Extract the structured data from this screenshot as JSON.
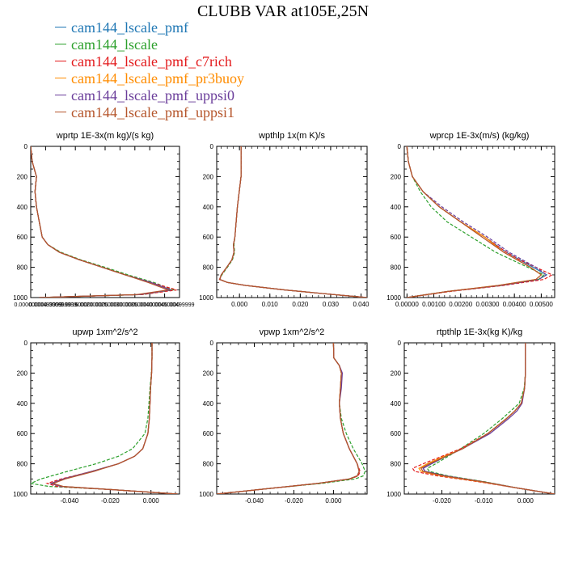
{
  "page_title": "CLUBB VAR at105E,25N",
  "legend": [
    {
      "label": "cam144_lscale_pmf",
      "color": "#1f77b4"
    },
    {
      "label": "cam144_lscale",
      "color": "#2ca02c"
    },
    {
      "label": "cam144_lscale_pmf_c7rich",
      "color": "#e31a1c"
    },
    {
      "label": "cam144_lscale_pmf_pr3buoy",
      "color": "#ff8c00"
    },
    {
      "label": "cam144_lscale_pmf_uppsi0",
      "color": "#6a3d9a"
    },
    {
      "label": "cam144_lscale_pmf_uppsi1",
      "color": "#b5552b"
    }
  ],
  "chart_data": [
    {
      "type": "line",
      "title": "wprtp  1E-3x(m kg)/(s kg)",
      "xlim": [
        0,
        0.0052
      ],
      "ylim": [
        1000,
        0
      ],
      "yticks": [
        0,
        200,
        400,
        600,
        800,
        1000
      ],
      "xtick_labels": [
        "0.000000000",
        "0.000499999",
        "0.000999999",
        "0.00150000",
        "0.00200000",
        "0.00250000",
        "0.00300000",
        "0.00350000",
        "0.00400000",
        "0.00450000",
        "0.00499999"
      ],
      "y": [
        0,
        100,
        200,
        300,
        400,
        500,
        600,
        650,
        700,
        750,
        800,
        850,
        900,
        950,
        980,
        1000
      ],
      "series": [
        {
          "color": "#1f77b4",
          "x": [
            0,
            5e-05,
            0.0002,
            0.00015,
            0.0002,
            0.0003,
            0.0004,
            0.0006,
            0.001,
            0.0017,
            0.0025,
            0.0033,
            0.0042,
            0.0049,
            0.0038,
            0.0003
          ]
        },
        {
          "color": "#2ca02c",
          "dash": true,
          "x": [
            0,
            5e-05,
            0.0002,
            0.00015,
            0.0002,
            0.0003,
            0.0004,
            0.0006,
            0.00105,
            0.00175,
            0.0026,
            0.0034,
            0.0043,
            0.005,
            0.0039,
            0.0003
          ]
        },
        {
          "color": "#e31a1c",
          "dash": true,
          "x": [
            0,
            5e-05,
            0.0002,
            0.00015,
            0.0002,
            0.0003,
            0.0004,
            0.0006,
            0.001,
            0.0017,
            0.0025,
            0.0033,
            0.0042,
            0.0051,
            0.0039,
            0.0003
          ]
        },
        {
          "color": "#ff8c00",
          "x": [
            0,
            5e-05,
            0.0002,
            0.00015,
            0.0002,
            0.0003,
            0.0004,
            0.0006,
            0.001,
            0.0017,
            0.0025,
            0.0033,
            0.0042,
            0.0049,
            0.0038,
            0.0003
          ]
        },
        {
          "color": "#6a3d9a",
          "x": [
            0,
            5e-05,
            0.0002,
            0.00015,
            0.0002,
            0.0003,
            0.0004,
            0.0006,
            0.001,
            0.0017,
            0.0025,
            0.0033,
            0.0042,
            0.0049,
            0.0038,
            0.0003
          ]
        },
        {
          "color": "#b5552b",
          "x": [
            0,
            5e-05,
            0.0002,
            0.00015,
            0.0002,
            0.0003,
            0.0004,
            0.0006,
            0.001,
            0.0017,
            0.0025,
            0.0033,
            0.0041,
            0.0048,
            0.0037,
            0.0003
          ]
        }
      ]
    },
    {
      "type": "line",
      "title": "wpthlp  1x(m K)/s",
      "xlim": [
        -0.0075,
        0.042
      ],
      "ylim": [
        1000,
        0
      ],
      "yticks": [
        0,
        200,
        400,
        600,
        800,
        1000
      ],
      "xticks": [
        0,
        0.01,
        0.02,
        0.03,
        0.04
      ],
      "xtick_labels": [
        "0.000",
        "0.010",
        "0.020",
        "0.030",
        "0.040"
      ],
      "y": [
        0,
        200,
        400,
        600,
        650,
        700,
        750,
        800,
        850,
        880,
        900,
        920,
        950,
        980,
        1000
      ],
      "series": [
        {
          "color": "#1f77b4",
          "x": [
            0.0005,
            0.0005,
            -0.0007,
            -0.0015,
            -0.002,
            -0.0018,
            -0.0025,
            -0.0042,
            -0.006,
            -0.0065,
            -0.004,
            0.002,
            0.015,
            0.031,
            0.042
          ]
        },
        {
          "color": "#2ca02c",
          "dash": true,
          "x": [
            0.0005,
            0.0005,
            -0.0007,
            -0.0015,
            -0.0018,
            -0.0016,
            -0.0023,
            -0.004,
            -0.0058,
            -0.0065,
            -0.004,
            0.002,
            0.015,
            0.031,
            0.042
          ]
        },
        {
          "color": "#e31a1c",
          "dash": true,
          "x": [
            0.0005,
            0.0005,
            -0.0007,
            -0.0015,
            -0.002,
            -0.0018,
            -0.0025,
            -0.0042,
            -0.006,
            -0.0066,
            -0.004,
            0.002,
            0.015,
            0.031,
            0.042
          ]
        },
        {
          "color": "#ff8c00",
          "x": [
            0.0005,
            0.0005,
            -0.0007,
            -0.0015,
            -0.002,
            -0.0018,
            -0.0025,
            -0.0042,
            -0.006,
            -0.0065,
            -0.004,
            0.002,
            0.015,
            0.031,
            0.042
          ]
        },
        {
          "color": "#6a3d9a",
          "x": [
            0.0005,
            0.0005,
            -0.0007,
            -0.0015,
            -0.002,
            -0.0018,
            -0.0025,
            -0.0042,
            -0.006,
            -0.0065,
            -0.004,
            0.002,
            0.015,
            0.031,
            0.042
          ]
        },
        {
          "color": "#b5552b",
          "x": [
            0.0005,
            0.0005,
            -0.0007,
            -0.0015,
            -0.002,
            -0.0018,
            -0.0025,
            -0.0042,
            -0.006,
            -0.0065,
            -0.004,
            0.002,
            0.015,
            0.031,
            0.042
          ]
        }
      ]
    },
    {
      "type": "line",
      "title": "wprcp  1E-3x(m/s) (kg/kg)",
      "xlim": [
        -0.0001,
        0.0055
      ],
      "ylim": [
        1000,
        0
      ],
      "yticks": [
        0,
        200,
        400,
        600,
        800,
        1000
      ],
      "xticks": [
        0,
        0.001,
        0.002,
        0.003,
        0.004,
        0.005
      ],
      "xtick_labels": [
        "0.00000",
        "0.00100",
        "0.00200",
        "0.00300",
        "0.00400",
        "0.00500"
      ],
      "y": [
        0,
        100,
        200,
        300,
        400,
        500,
        600,
        700,
        750,
        800,
        850,
        880,
        920,
        960,
        1000
      ],
      "series": [
        {
          "color": "#1f77b4",
          "x": [
            0,
            5e-05,
            0.0002,
            0.0006,
            0.0012,
            0.002,
            0.0029,
            0.0037,
            0.0042,
            0.0047,
            0.0052,
            0.0049,
            0.0035,
            0.0015,
            0
          ]
        },
        {
          "color": "#2ca02c",
          "dash": true,
          "x": [
            0,
            5e-05,
            0.0002,
            0.0005,
            0.0009,
            0.0015,
            0.0024,
            0.0033,
            0.0039,
            0.0045,
            0.0051,
            0.0049,
            0.0035,
            0.0015,
            0
          ]
        },
        {
          "color": "#e31a1c",
          "dash": true,
          "x": [
            0,
            5e-05,
            0.0002,
            0.0006,
            0.0012,
            0.002,
            0.0029,
            0.0037,
            0.0042,
            0.0048,
            0.0054,
            0.0051,
            0.0036,
            0.0016,
            0
          ]
        },
        {
          "color": "#ff8c00",
          "x": [
            0,
            5e-05,
            0.0002,
            0.0006,
            0.0012,
            0.002,
            0.0029,
            0.0036,
            0.0041,
            0.0046,
            0.005,
            0.0048,
            0.0034,
            0.0015,
            0
          ]
        },
        {
          "color": "#6a3d9a",
          "dash": true,
          "x": [
            0,
            5e-05,
            0.0002,
            0.0006,
            0.0013,
            0.0021,
            0.003,
            0.0038,
            0.0043,
            0.0048,
            0.0052,
            0.0049,
            0.0035,
            0.0015,
            0
          ]
        },
        {
          "color": "#b5552b",
          "x": [
            0,
            5e-05,
            0.0002,
            0.0006,
            0.0012,
            0.002,
            0.0028,
            0.0036,
            0.0041,
            0.0046,
            0.005,
            0.0048,
            0.0034,
            0.0015,
            0
          ]
        }
      ]
    },
    {
      "type": "line",
      "title": "upwp  1xm^2/s^2",
      "xlim": [
        -0.059,
        0.014
      ],
      "ylim": [
        1000,
        0
      ],
      "yticks": [
        0,
        200,
        400,
        600,
        800,
        1000
      ],
      "xticks": [
        -0.04,
        -0.02,
        0
      ],
      "xtick_labels": [
        "-0.040",
        "-0.020",
        "0.000"
      ],
      "y": [
        0,
        100,
        200,
        300,
        400,
        500,
        600,
        700,
        750,
        800,
        850,
        900,
        930,
        950,
        970,
        1000
      ],
      "series": [
        {
          "color": "#1f77b4",
          "x": [
            0.0005,
            0.0005,
            0.0003,
            -0.0002,
            -0.0005,
            -0.0008,
            -0.0015,
            -0.004,
            -0.008,
            -0.016,
            -0.029,
            -0.043,
            -0.049,
            -0.044,
            -0.02,
            0.013
          ]
        },
        {
          "color": "#2ca02c",
          "dash": true,
          "x": [
            0.0005,
            0.0005,
            0.0002,
            -0.0005,
            -0.001,
            -0.0015,
            -0.003,
            -0.009,
            -0.016,
            -0.027,
            -0.041,
            -0.054,
            -0.059,
            -0.05,
            -0.02,
            0.013
          ]
        },
        {
          "color": "#e31a1c",
          "dash": true,
          "x": [
            0.0005,
            0.0005,
            0.0003,
            -0.0002,
            -0.0005,
            -0.0008,
            -0.0015,
            -0.004,
            -0.008,
            -0.016,
            -0.029,
            -0.044,
            -0.051,
            -0.046,
            -0.021,
            0.013
          ]
        },
        {
          "color": "#ff8c00",
          "x": [
            0.0005,
            0.0005,
            0.0003,
            -0.0002,
            -0.0005,
            -0.0008,
            -0.0015,
            -0.004,
            -0.008,
            -0.016,
            -0.029,
            -0.043,
            -0.049,
            -0.044,
            -0.02,
            0.013
          ]
        },
        {
          "color": "#6a3d9a",
          "x": [
            0.0005,
            0.0005,
            0.0003,
            -0.0002,
            -0.0005,
            -0.0008,
            -0.0015,
            -0.004,
            -0.008,
            -0.016,
            -0.029,
            -0.043,
            -0.049,
            -0.044,
            -0.02,
            0.013
          ]
        },
        {
          "color": "#b5552b",
          "x": [
            0.0005,
            0.0005,
            0.0003,
            -0.0002,
            -0.0005,
            -0.0008,
            -0.0015,
            -0.004,
            -0.008,
            -0.016,
            -0.028,
            -0.042,
            -0.048,
            -0.043,
            -0.02,
            0.013
          ]
        }
      ]
    },
    {
      "type": "line",
      "title": "vpwp  1xm^2/s^2",
      "xlim": [
        -0.059,
        0.017
      ],
      "ylim": [
        1000,
        0
      ],
      "yticks": [
        0,
        200,
        400,
        600,
        800,
        1000
      ],
      "xticks": [
        -0.04,
        -0.02,
        0
      ],
      "xtick_labels": [
        "-0.040",
        "-0.020",
        "0.000"
      ],
      "y": [
        0,
        100,
        150,
        200,
        300,
        400,
        500,
        600,
        700,
        800,
        850,
        880,
        900,
        930,
        960,
        1000
      ],
      "series": [
        {
          "color": "#1f77b4",
          "x": [
            0,
            0.0002,
            0.003,
            0.004,
            0.0035,
            0.003,
            0.0035,
            0.005,
            0.008,
            0.012,
            0.013,
            0.012,
            0.008,
            -0.008,
            -0.03,
            -0.059
          ]
        },
        {
          "color": "#2ca02c",
          "dash": true,
          "x": [
            0,
            0.0002,
            0.003,
            0.004,
            0.0035,
            0.003,
            0.004,
            0.0065,
            0.01,
            0.0145,
            0.016,
            0.015,
            0.011,
            -0.006,
            -0.03,
            -0.059
          ]
        },
        {
          "color": "#e31a1c",
          "dash": true,
          "x": [
            0,
            0.0002,
            0.003,
            0.004,
            0.0035,
            0.003,
            0.0035,
            0.005,
            0.008,
            0.012,
            0.0135,
            0.0125,
            0.0085,
            -0.008,
            -0.03,
            -0.059
          ]
        },
        {
          "color": "#ff8c00",
          "x": [
            0,
            0.0002,
            0.003,
            0.004,
            0.0035,
            0.003,
            0.0035,
            0.005,
            0.008,
            0.012,
            0.013,
            0.012,
            0.008,
            -0.008,
            -0.03,
            -0.059
          ]
        },
        {
          "color": "#6a3d9a",
          "x": [
            0,
            0.0002,
            0.003,
            0.0045,
            0.004,
            0.003,
            0.0035,
            0.005,
            0.008,
            0.012,
            0.013,
            0.012,
            0.008,
            -0.008,
            -0.03,
            -0.059
          ]
        },
        {
          "color": "#b5552b",
          "x": [
            0,
            0.0002,
            0.003,
            0.004,
            0.0035,
            0.003,
            0.0035,
            0.005,
            0.008,
            0.012,
            0.013,
            0.012,
            0.008,
            -0.008,
            -0.03,
            -0.059
          ]
        }
      ]
    },
    {
      "type": "line",
      "title": "rtpthlp  1E-3x(kg K)/kg",
      "xlim": [
        -0.029,
        0.007
      ],
      "ylim": [
        1000,
        0
      ],
      "yticks": [
        0,
        200,
        400,
        600,
        800,
        1000
      ],
      "xticks": [
        -0.02,
        -0.01,
        0
      ],
      "xtick_labels": [
        "-0.020",
        "-0.010",
        "0.000"
      ],
      "y": [
        0,
        200,
        300,
        400,
        450,
        500,
        600,
        700,
        750,
        800,
        830,
        850,
        880,
        920,
        960,
        1000
      ],
      "series": [
        {
          "color": "#1f77b4",
          "x": [
            0,
            0,
            -0.0002,
            -0.001,
            -0.0025,
            -0.0045,
            -0.009,
            -0.015,
            -0.019,
            -0.0225,
            -0.0245,
            -0.024,
            -0.019,
            -0.01,
            -0.002,
            0.007
          ]
        },
        {
          "color": "#2ca02c",
          "dash": true,
          "x": [
            0,
            0,
            -0.0003,
            -0.0015,
            -0.0035,
            -0.0055,
            -0.01,
            -0.0155,
            -0.0185,
            -0.0215,
            -0.0235,
            -0.023,
            -0.0185,
            -0.0095,
            -0.002,
            0.007
          ]
        },
        {
          "color": "#e31a1c",
          "dash": true,
          "x": [
            0,
            0,
            -0.0002,
            -0.001,
            -0.0025,
            -0.0045,
            -0.009,
            -0.0155,
            -0.02,
            -0.0245,
            -0.027,
            -0.0265,
            -0.021,
            -0.011,
            -0.002,
            0.007
          ]
        },
        {
          "color": "#ff8c00",
          "x": [
            0,
            0,
            -0.0002,
            -0.001,
            -0.0025,
            -0.0045,
            -0.009,
            -0.015,
            -0.0195,
            -0.0235,
            -0.0255,
            -0.025,
            -0.02,
            -0.0105,
            -0.002,
            0.007
          ]
        },
        {
          "color": "#6a3d9a",
          "x": [
            0,
            0,
            -0.0002,
            -0.0008,
            -0.002,
            -0.004,
            -0.0085,
            -0.015,
            -0.019,
            -0.0225,
            -0.0245,
            -0.024,
            -0.019,
            -0.01,
            -0.002,
            0.007
          ]
        },
        {
          "color": "#b5552b",
          "x": [
            0,
            0,
            -0.0002,
            -0.001,
            -0.0025,
            -0.0045,
            -0.009,
            -0.015,
            -0.019,
            -0.023,
            -0.025,
            -0.0245,
            -0.0195,
            -0.01,
            -0.002,
            0.007
          ]
        }
      ]
    }
  ]
}
